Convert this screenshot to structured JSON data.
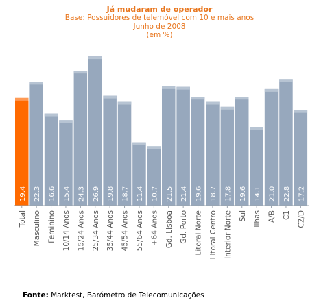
{
  "chart_data": {
    "type": "bar",
    "title": "Já mudaram de operador",
    "subtitle": [
      "Base: Possuidores de telemóvel com 10 e mais anos",
      "Junho de 2008",
      "(em %)"
    ],
    "categories": [
      "Total",
      "Masculino",
      "Feminino",
      "10/14 Anos",
      "15/24 Anos",
      "25/34 Anos",
      "35/44 Anos",
      "45/54 Anos",
      "55/64 Anos",
      "+64 Anos",
      "Gd. Lisboa",
      "Gd. Porto",
      "Litoral Norte",
      "Litoral Centro",
      "Interior Norte",
      "Sul",
      "Ilhas",
      "A/B",
      "C1",
      "C2/D"
    ],
    "values": [
      19.4,
      22.3,
      16.6,
      15.4,
      24.3,
      26.9,
      19.8,
      18.7,
      11.4,
      10.7,
      21.5,
      21.4,
      19.6,
      18.7,
      17.8,
      19.6,
      14.1,
      21.0,
      22.8,
      17.2
    ],
    "value_labels": [
      "19.4",
      "22.3",
      "16.6",
      "15.4",
      "24.3",
      "26.9",
      "19.8",
      "18.7",
      "11.4",
      "10.7",
      "21.5",
      "21.4",
      "19.6",
      "18.7",
      "17.8",
      "19.6",
      "14.1",
      "21.0",
      "22.8",
      "17.2"
    ],
    "highlight_index": 0,
    "colors": {
      "bar": "#97a8bd",
      "bar_top": "#b7c4d3",
      "highlight": "#ff6a00",
      "highlight_top": "#ff9a55",
      "title": "#e8761e",
      "axis": "#9aa3ad",
      "label": "#555555",
      "value_label": "#ffffff"
    },
    "grid": false,
    "legend": "none"
  },
  "source": {
    "label": "Fonte:",
    "text": " Marktest, Barómetro de Telecomunicações"
  }
}
